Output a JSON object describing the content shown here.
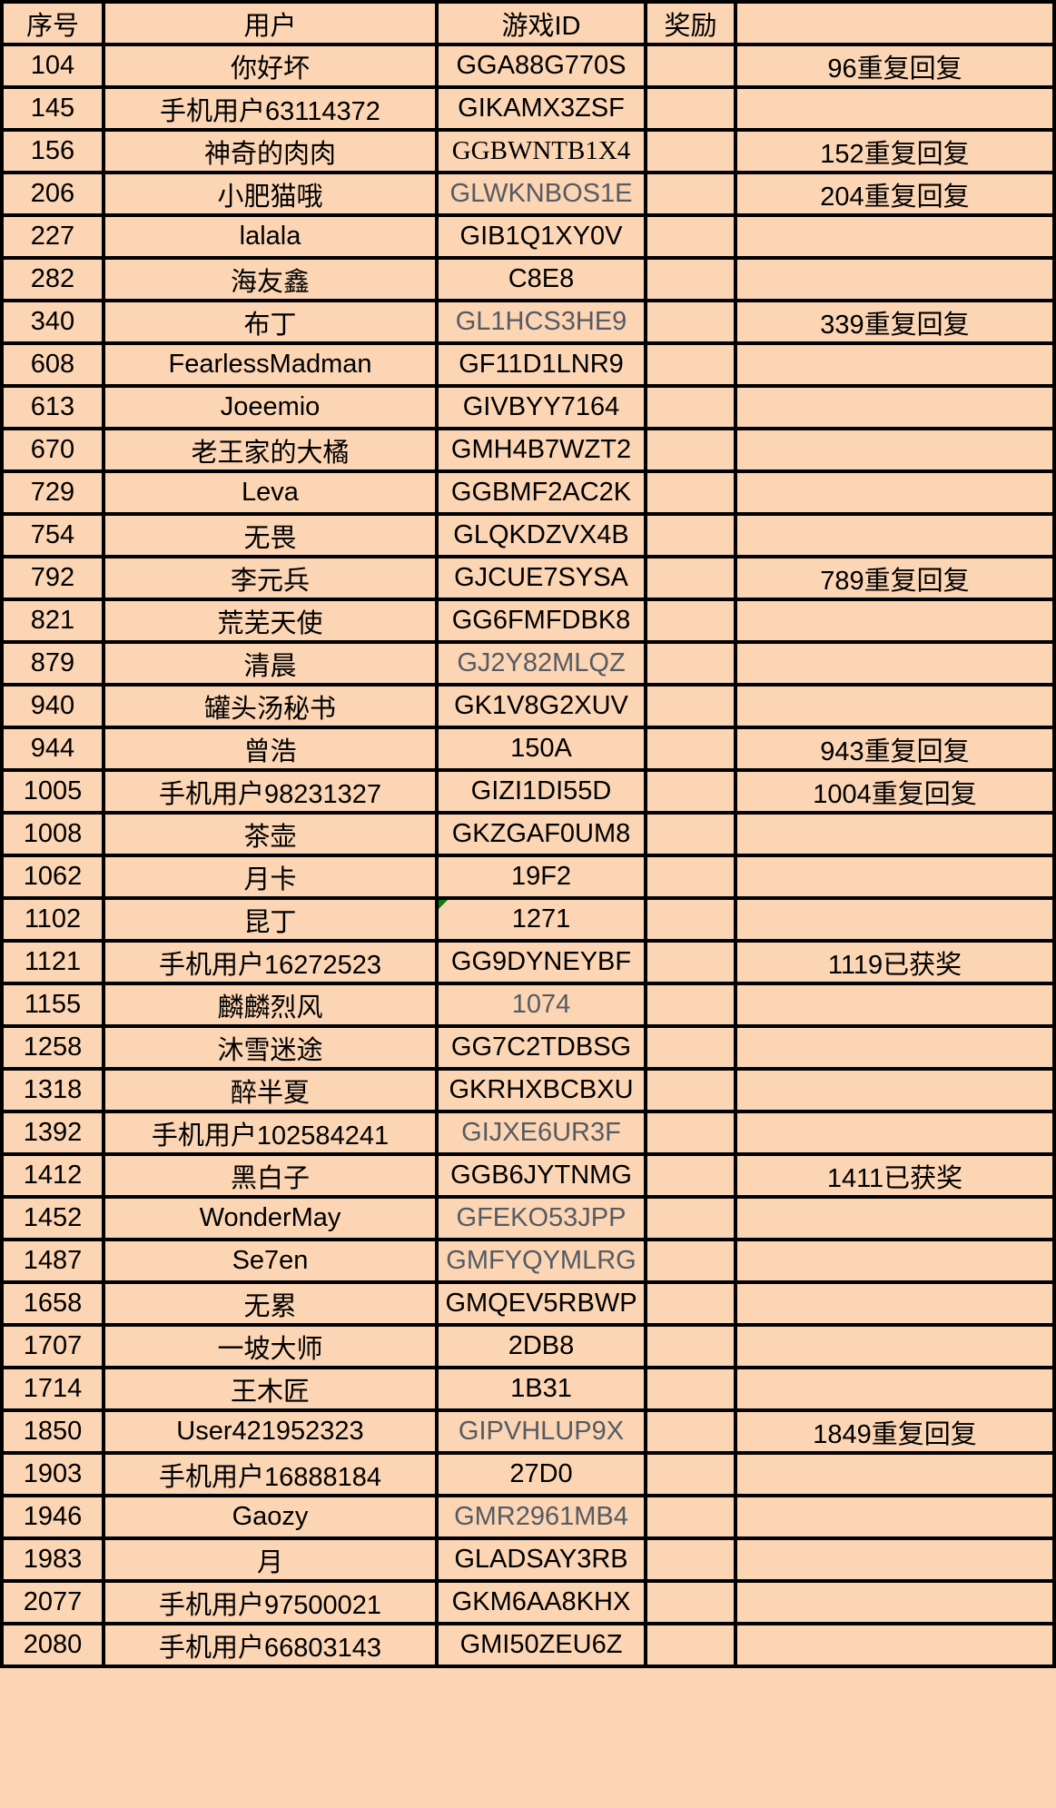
{
  "headers": [
    "序号",
    "用户",
    "游戏ID",
    "奖励",
    ""
  ],
  "colors": {
    "background": "#fcd5b5",
    "gray_text": "#555b63",
    "flag": "#0a7d0a"
  },
  "rows": [
    {
      "no": "104",
      "user": "你好坏",
      "game_id": "GGA88G770S",
      "reward": "",
      "note": "96重复回复"
    },
    {
      "no": "145",
      "user": "手机用户63114372",
      "game_id": "GIKAMX3ZSF",
      "reward": "",
      "note": ""
    },
    {
      "no": "156",
      "user": "神奇的肉肉",
      "game_id": "GGBWNTB1X4",
      "reward": "",
      "note": "152重复回复",
      "serif": true
    },
    {
      "no": "206",
      "user": "小肥猫哦",
      "game_id": "GLWKNBOS1E",
      "reward": "",
      "note": "204重复回复",
      "gray": true
    },
    {
      "no": "227",
      "user": "lalala",
      "game_id": "GIB1Q1XY0V",
      "reward": "",
      "note": ""
    },
    {
      "no": "282",
      "user": "海友鑫",
      "game_id": "C8E8",
      "reward": "",
      "note": ""
    },
    {
      "no": "340",
      "user": "布丁",
      "game_id": "GL1HCS3HE9",
      "reward": "",
      "note": "339重复回复",
      "gray": true
    },
    {
      "no": "608",
      "user": "FearlessMadman",
      "game_id": "GF11D1LNR9",
      "reward": "",
      "note": ""
    },
    {
      "no": "613",
      "user": "Joeemio",
      "game_id": "GIVBYY7164",
      "reward": "",
      "note": ""
    },
    {
      "no": "670",
      "user": "老王家的大橘",
      "game_id": "GMH4B7WZT2",
      "reward": "",
      "note": ""
    },
    {
      "no": "729",
      "user": "Leva",
      "game_id": "GGBMF2AC2K",
      "reward": "",
      "note": ""
    },
    {
      "no": "754",
      "user": "无畏",
      "game_id": "GLQKDZVX4B",
      "reward": "",
      "note": ""
    },
    {
      "no": "792",
      "user": "李元兵",
      "game_id": "GJCUE7SYSA",
      "reward": "",
      "note": "789重复回复"
    },
    {
      "no": "821",
      "user": "荒芜天使",
      "game_id": "GG6FMFDBK8",
      "reward": "",
      "note": ""
    },
    {
      "no": "879",
      "user": "清晨",
      "game_id": "GJ2Y82MLQZ",
      "reward": "",
      "note": "",
      "gray": true
    },
    {
      "no": "940",
      "user": "罐头汤秘书",
      "game_id": "GK1V8G2XUV",
      "reward": "",
      "note": ""
    },
    {
      "no": "944",
      "user": "曾浩",
      "game_id": "150A",
      "reward": "",
      "note": "943重复回复"
    },
    {
      "no": "1005",
      "user": "手机用户98231327",
      "game_id": "GIZI1DI55D",
      "reward": "",
      "note": "1004重复回复"
    },
    {
      "no": "1008",
      "user": "茶壶",
      "game_id": "GKZGAF0UM8",
      "reward": "",
      "note": ""
    },
    {
      "no": "1062",
      "user": "月卡",
      "game_id": "19F2",
      "reward": "",
      "note": ""
    },
    {
      "no": "1102",
      "user": "昆丁",
      "game_id": "1271",
      "reward": "",
      "note": "",
      "flag": true
    },
    {
      "no": "1121",
      "user": "手机用户16272523",
      "game_id": "GG9DYNEYBF",
      "reward": "",
      "note": "1119已获奖"
    },
    {
      "no": "1155",
      "user": "麟麟烈风",
      "game_id": "1074",
      "reward": "",
      "note": "",
      "gray": true
    },
    {
      "no": "1258",
      "user": "沐雪迷途",
      "game_id": "GG7C2TDBSG",
      "reward": "",
      "note": ""
    },
    {
      "no": "1318",
      "user": "醉半夏",
      "game_id": "GKRHXBCBXU",
      "reward": "",
      "note": ""
    },
    {
      "no": "1392",
      "user": "手机用户102584241",
      "game_id": "GIJXE6UR3F",
      "reward": "",
      "note": "",
      "gray": true
    },
    {
      "no": "1412",
      "user": "黑白子",
      "game_id": "GGB6JYTNMG",
      "reward": "",
      "note": "1411已获奖"
    },
    {
      "no": "1452",
      "user": "WonderMay",
      "game_id": "GFEKO53JPP",
      "reward": "",
      "note": "",
      "gray": true
    },
    {
      "no": "1487",
      "user": "Se7en",
      "game_id": "GMFYQYMLRG",
      "reward": "",
      "note": "",
      "gray": true
    },
    {
      "no": "1658",
      "user": "无累",
      "game_id": "GMQEV5RBWP",
      "reward": "",
      "note": ""
    },
    {
      "no": "1707",
      "user": "一坡大师",
      "game_id": "2DB8",
      "reward": "",
      "note": ""
    },
    {
      "no": "1714",
      "user": "王木匠",
      "game_id": "1B31",
      "reward": "",
      "note": ""
    },
    {
      "no": "1850",
      "user": "User421952323",
      "game_id": "GIPVHLUP9X",
      "reward": "",
      "note": "1849重复回复",
      "gray": true
    },
    {
      "no": "1903",
      "user": "手机用户16888184",
      "game_id": "27D0",
      "reward": "",
      "note": ""
    },
    {
      "no": "1946",
      "user": "Gaozy",
      "game_id": "GMR2961MB4",
      "reward": "",
      "note": "",
      "gray": true
    },
    {
      "no": "1983",
      "user": "月",
      "game_id": "GLADSAY3RB",
      "reward": "",
      "note": ""
    },
    {
      "no": "2077",
      "user": "手机用户97500021",
      "game_id": "GKM6AA8KHX",
      "reward": "",
      "note": ""
    },
    {
      "no": "2080",
      "user": "手机用户66803143",
      "game_id": "GMI50ZEU6Z",
      "reward": "",
      "note": ""
    }
  ]
}
